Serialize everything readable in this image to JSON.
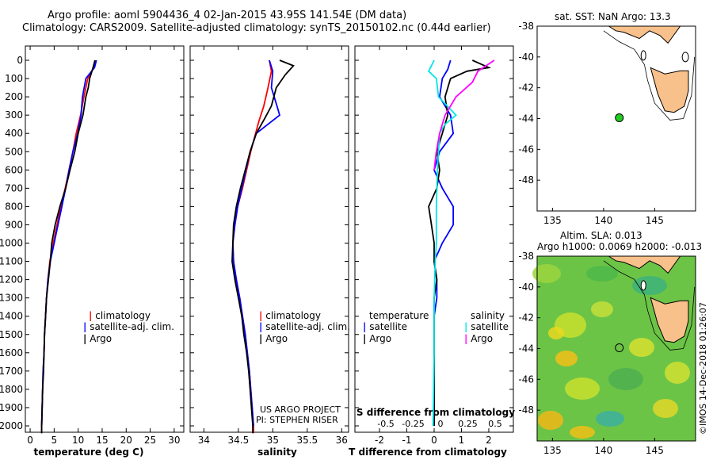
{
  "header": {
    "line1": "Argo profile: aoml 5904436_4 02-Jan-2015 43.95S 141.54E (DM data)",
    "line2": "Climatology: CARS2009. Satellite-adjusted climatology: synTS_20150102.nc (0.44d earlier)"
  },
  "depth_ticks": [
    "0",
    "100",
    "200",
    "300",
    "400",
    "500",
    "600",
    "700",
    "800",
    "900",
    "1000",
    "1100",
    "1200",
    "1300",
    "1400",
    "1500",
    "1600",
    "1700",
    "1800",
    "1900",
    "2000"
  ],
  "legend": {
    "climatology": "climatology",
    "satellite_adj": "satellite-adj. clim.",
    "argo": "Argo",
    "temperature": "temperature",
    "salinity": "salinity",
    "satellite": "satellite"
  },
  "credits": {
    "line1": "US ARGO PROJECT",
    "line2": "PI: STEPHEN RISER"
  },
  "map_top": {
    "title": "sat. SST: NaN Argo: 13.3"
  },
  "map_bottom": {
    "title1": "Altim. SLA: 0.013",
    "title2": "Argo h1000: 0.0069 h2000: -0.013"
  },
  "stamp": "©IMOS 14-Dec-2018 01:26:07",
  "colors": {
    "climatology": "#ff0000",
    "satellite": "#0000ff",
    "argo": "#000000",
    "sal_sat": "#00e5e5",
    "sal_argo": "#ff00ff",
    "land": "#f8c08a"
  },
  "chart_data": [
    {
      "type": "line",
      "xlabel": "temperature (deg C)",
      "ylabel": "",
      "xlim": [
        -1,
        32
      ],
      "ylim": [
        2070,
        0
      ],
      "xticks": [
        "0",
        "5",
        "10",
        "15",
        "20",
        "25",
        "30"
      ],
      "series": [
        {
          "name": "climatology",
          "points": [
            [
              13.6,
              0
            ],
            [
              13.2,
              40
            ],
            [
              12.0,
              100
            ],
            [
              11.2,
              200
            ],
            [
              10.5,
              300
            ],
            [
              9.6,
              400
            ],
            [
              8.9,
              500
            ],
            [
              8.1,
              600
            ],
            [
              7.3,
              700
            ],
            [
              6.4,
              800
            ],
            [
              5.6,
              900
            ],
            [
              4.8,
              1000
            ],
            [
              4.1,
              1100
            ],
            [
              3.7,
              1200
            ],
            [
              3.4,
              1300
            ],
            [
              3.2,
              1400
            ],
            [
              3.0,
              1500
            ],
            [
              2.9,
              1600
            ],
            [
              2.7,
              1700
            ],
            [
              2.6,
              1800
            ],
            [
              2.5,
              1900
            ],
            [
              2.4,
              2000
            ],
            [
              2.4,
              2040
            ]
          ]
        },
        {
          "name": "satellite-adj. clim.",
          "points": [
            [
              13.8,
              0
            ],
            [
              13.4,
              40
            ],
            [
              11.6,
              100
            ],
            [
              10.9,
              200
            ],
            [
              10.6,
              300
            ],
            [
              9.9,
              400
            ],
            [
              8.9,
              500
            ],
            [
              8.1,
              600
            ],
            [
              7.4,
              700
            ],
            [
              6.6,
              800
            ],
            [
              5.8,
              900
            ],
            [
              5.0,
              1000
            ],
            [
              4.2,
              1100
            ],
            [
              3.7,
              1200
            ],
            [
              3.4,
              1300
            ],
            [
              3.2,
              1400
            ],
            [
              3.0,
              1500
            ],
            [
              2.9,
              1600
            ],
            [
              2.7,
              1700
            ],
            [
              2.6,
              1800
            ],
            [
              2.5,
              1900
            ],
            [
              2.4,
              2000
            ]
          ]
        },
        {
          "name": "Argo",
          "points": [
            [
              13.5,
              0
            ],
            [
              13.0,
              50
            ],
            [
              12.4,
              100
            ],
            [
              12.1,
              150
            ],
            [
              11.6,
              200
            ],
            [
              11.0,
              300
            ],
            [
              10.0,
              400
            ],
            [
              9.3,
              500
            ],
            [
              8.3,
              600
            ],
            [
              7.4,
              700
            ],
            [
              6.2,
              800
            ],
            [
              5.2,
              900
            ],
            [
              4.5,
              1000
            ],
            [
              4.2,
              1100
            ],
            [
              3.8,
              1200
            ],
            [
              3.4,
              1300
            ],
            [
              3.2,
              1400
            ],
            [
              3.0,
              1500
            ],
            [
              2.9,
              1600
            ],
            [
              2.8,
              1700
            ],
            [
              2.6,
              1800
            ],
            [
              2.5,
              1900
            ],
            [
              2.4,
              2000
            ],
            [
              2.4,
              2040
            ]
          ]
        }
      ]
    },
    {
      "type": "line",
      "xlabel": "salinity",
      "ylabel": "",
      "xlim": [
        33.8,
        36.1
      ],
      "ylim": [
        2070,
        0
      ],
      "xticks": [
        "34",
        "34.5",
        "35",
        "35.5",
        "36"
      ],
      "series": [
        {
          "name": "climatology",
          "points": [
            [
              34.95,
              0
            ],
            [
              34.98,
              60
            ],
            [
              34.93,
              150
            ],
            [
              34.87,
              250
            ],
            [
              34.8,
              330
            ],
            [
              34.75,
              400
            ],
            [
              34.68,
              500
            ],
            [
              34.62,
              600
            ],
            [
              34.56,
              700
            ],
            [
              34.49,
              800
            ],
            [
              34.45,
              900
            ],
            [
              34.42,
              1000
            ],
            [
              34.43,
              1100
            ],
            [
              34.47,
              1200
            ],
            [
              34.52,
              1300
            ],
            [
              34.56,
              1400
            ],
            [
              34.6,
              1500
            ],
            [
              34.63,
              1600
            ],
            [
              34.66,
              1700
            ],
            [
              34.68,
              1800
            ],
            [
              34.7,
              1900
            ],
            [
              34.72,
              2000
            ],
            [
              34.72,
              2040
            ]
          ]
        },
        {
          "name": "satellite-adj. clim.",
          "points": [
            [
              34.95,
              0
            ],
            [
              35.0,
              60
            ],
            [
              34.98,
              150
            ],
            [
              35.06,
              250
            ],
            [
              35.1,
              300
            ],
            [
              34.76,
              400
            ],
            [
              34.67,
              500
            ],
            [
              34.61,
              600
            ],
            [
              34.55,
              700
            ],
            [
              34.49,
              800
            ],
            [
              34.45,
              900
            ],
            [
              34.42,
              1000
            ],
            [
              34.43,
              1100
            ],
            [
              34.47,
              1200
            ],
            [
              34.52,
              1300
            ],
            [
              34.56,
              1400
            ],
            [
              34.6,
              1500
            ],
            [
              34.63,
              1600
            ],
            [
              34.66,
              1700
            ],
            [
              34.68,
              1800
            ],
            [
              34.7,
              1900
            ],
            [
              34.72,
              2000
            ]
          ]
        },
        {
          "name": "Argo",
          "points": [
            [
              35.1,
              0
            ],
            [
              35.3,
              30
            ],
            [
              35.18,
              80
            ],
            [
              35.05,
              150
            ],
            [
              34.98,
              250
            ],
            [
              34.88,
              320
            ],
            [
              34.76,
              400
            ],
            [
              34.67,
              500
            ],
            [
              34.6,
              600
            ],
            [
              34.53,
              700
            ],
            [
              34.47,
              800
            ],
            [
              34.43,
              900
            ],
            [
              34.42,
              1000
            ],
            [
              34.41,
              1100
            ],
            [
              34.45,
              1200
            ],
            [
              34.5,
              1300
            ],
            [
              34.55,
              1400
            ],
            [
              34.58,
              1500
            ],
            [
              34.62,
              1600
            ],
            [
              34.65,
              1700
            ],
            [
              34.67,
              1800
            ],
            [
              34.69,
              1900
            ],
            [
              34.71,
              2000
            ],
            [
              34.71,
              2040
            ]
          ]
        }
      ]
    },
    {
      "type": "line",
      "xlabel": "T difference from climatology",
      "xlabel2": "S difference from climatology",
      "xlim": [
        -2.9,
        2.9
      ],
      "ylim": [
        2070,
        0
      ],
      "xticks": [
        "-2",
        "-1",
        "0",
        "1",
        "2"
      ],
      "xticks_s": [
        "-0.5",
        "-0.25",
        "0",
        "0.25",
        "0.5"
      ],
      "series": [
        {
          "name": "temperature satellite",
          "points": [
            [
              0.6,
              0
            ],
            [
              0.5,
              50
            ],
            [
              0.3,
              100
            ],
            [
              0.2,
              200
            ],
            [
              0.6,
              300
            ],
            [
              0.7,
              400
            ],
            [
              0.2,
              500
            ],
            [
              0.0,
              600
            ],
            [
              0.3,
              700
            ],
            [
              0.7,
              800
            ],
            [
              0.7,
              900
            ],
            [
              0.3,
              1000
            ],
            [
              0.0,
              1100
            ],
            [
              0.1,
              1200
            ],
            [
              0.1,
              1300
            ],
            [
              0.0,
              1400
            ],
            [
              0.0,
              1500
            ],
            [
              0.0,
              1700
            ],
            [
              0.0,
              2000
            ]
          ]
        },
        {
          "name": "temperature Argo",
          "points": [
            [
              1.4,
              0
            ],
            [
              2.0,
              40
            ],
            [
              1.2,
              60
            ],
            [
              0.6,
              100
            ],
            [
              0.4,
              200
            ],
            [
              0.5,
              300
            ],
            [
              0.3,
              400
            ],
            [
              0.1,
              500
            ],
            [
              0.2,
              600
            ],
            [
              0.1,
              700
            ],
            [
              -0.2,
              800
            ],
            [
              -0.1,
              900
            ],
            [
              0.0,
              1000
            ],
            [
              0.0,
              1100
            ],
            [
              0.1,
              1200
            ],
            [
              0.0,
              1300
            ],
            [
              0.0,
              1500
            ],
            [
              0.0,
              1700
            ],
            [
              0.0,
              2000
            ]
          ]
        },
        {
          "name": "salinity satellite",
          "points": [
            [
              0.0,
              0
            ],
            [
              -0.05,
              60
            ],
            [
              0.02,
              100
            ],
            [
              0.04,
              200
            ],
            [
              0.2,
              300
            ],
            [
              0.1,
              350
            ],
            [
              0.05,
              400
            ],
            [
              0.03,
              600
            ],
            [
              0.02,
              800
            ],
            [
              0.02,
              1000
            ],
            [
              0.01,
              1100
            ],
            [
              0.0,
              1300
            ],
            [
              0.0,
              1600
            ],
            [
              -0.01,
              2000
            ]
          ]
        },
        {
          "name": "salinity Argo",
          "points": [
            [
              0.55,
              0
            ],
            [
              0.4,
              60
            ],
            [
              0.35,
              120
            ],
            [
              0.2,
              200
            ],
            [
              0.1,
              300
            ],
            [
              0.05,
              400
            ],
            [
              0.02,
              500
            ],
            [
              0.0,
              600
            ]
          ]
        }
      ]
    }
  ],
  "map_axes": {
    "lat_ticks": [
      "-38",
      "-40",
      "-42",
      "-44",
      "-46",
      "-48"
    ],
    "lon_ticks": [
      "135",
      "140",
      "145"
    ]
  }
}
